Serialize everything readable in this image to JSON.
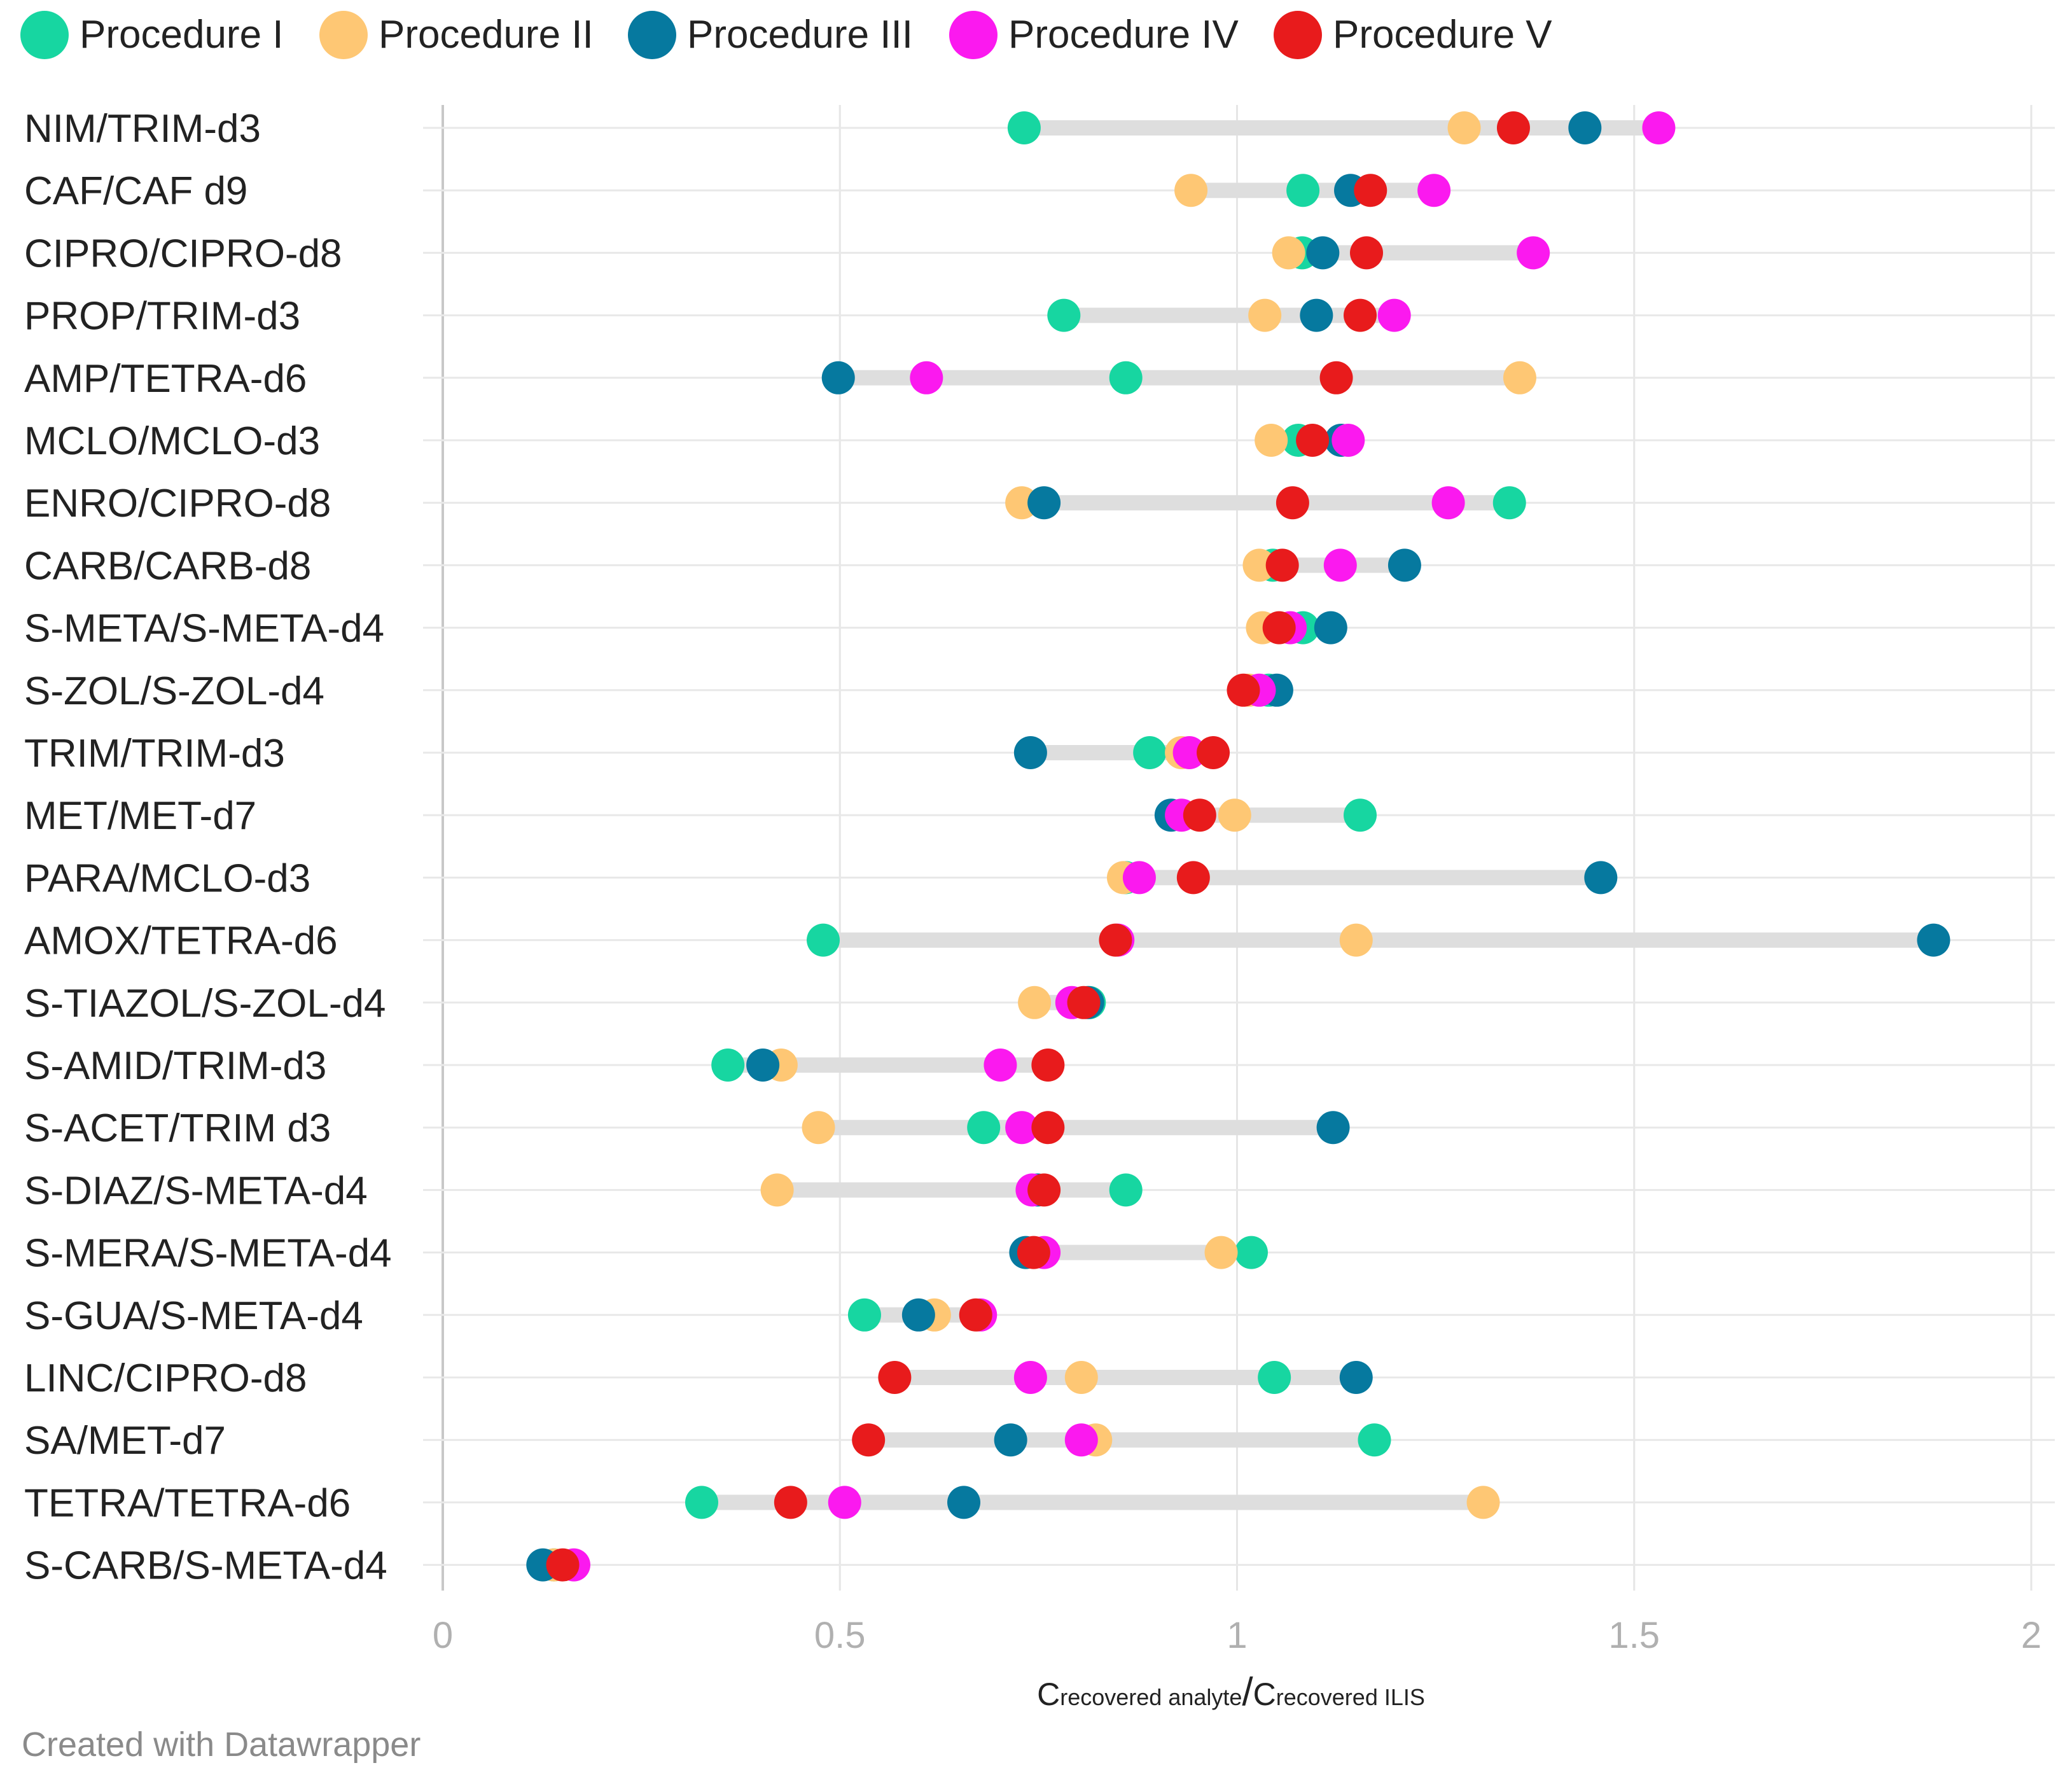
{
  "chart_data": {
    "type": "scatter",
    "subtype": "range-dot-plot",
    "title": "",
    "xlabel_parts": [
      "C",
      "recovered analyte",
      "/",
      "C",
      "recovered ILIS"
    ],
    "xlim": [
      0,
      2
    ],
    "xticks": [
      0,
      0.5,
      1,
      1.5,
      2
    ],
    "xtick_labels": [
      "0",
      "0.5",
      "1",
      "1.5",
      "2"
    ],
    "grid": true,
    "legend_position": "top-left",
    "series": [
      {
        "name": "Procedure I",
        "color": "#17d6a1"
      },
      {
        "name": "Procedure II",
        "color": "#fec774"
      },
      {
        "name": "Procedure III",
        "color": "#06799f"
      },
      {
        "name": "Procedure IV",
        "color": "#fb19ef"
      },
      {
        "name": "Procedure V",
        "color": "#e81b1c"
      }
    ],
    "categories": [
      "NIM/TRIM-d3",
      "CAF/CAF d9",
      "CIPRO/CIPRO-d8",
      "PROP/TRIM-d3",
      "AMP/TETRA-d6",
      "MCLO/MCLO-d3",
      "ENRO/CIPRO-d8",
      "CARB/CARB-d8",
      "S-META/S-META-d4",
      "S-ZOL/S-ZOL-d4",
      "TRIM/TRIM-d3",
      "MET/MET-d7",
      "PARA/MCLO-d3",
      "AMOX/TETRA-d6",
      "S-TIAZOL/S-ZOL-d4",
      "S-AMID/TRIM-d3",
      "S-ACET/TRIM d3",
      "S-DIAZ/S-META-d4",
      "S-MERA/S-META-d4",
      "S-GUA/S-META-d4",
      "LINC/CIPRO-d8",
      "SA/MET-d7",
      "TETRA/TETRA-d6",
      "S-CARB/S-META-d4"
    ],
    "values": [
      [
        0.732,
        1.286,
        1.438,
        1.531,
        1.348
      ],
      [
        1.083,
        0.942,
        1.143,
        1.248,
        1.168
      ],
      [
        1.082,
        1.065,
        1.108,
        1.373,
        1.163
      ],
      [
        0.782,
        1.035,
        1.1,
        1.198,
        1.155
      ],
      [
        0.86,
        1.356,
        0.498,
        0.609,
        1.125
      ],
      [
        1.077,
        1.043,
        1.131,
        1.14,
        1.095
      ],
      [
        1.343,
        0.729,
        0.757,
        1.266,
        1.07
      ],
      [
        1.045,
        1.028,
        1.211,
        1.13,
        1.057
      ],
      [
        1.083,
        1.032,
        1.118,
        1.067,
        1.053
      ],
      [
        1.04,
        1.015,
        1.05,
        1.028,
        1.008
      ],
      [
        0.89,
        0.93,
        0.74,
        0.94,
        0.97
      ],
      [
        1.155,
        0.997,
        0.917,
        0.93,
        0.953
      ],
      [
        0.86,
        0.857,
        1.458,
        0.877,
        0.945
      ],
      [
        0.479,
        1.15,
        1.877,
        0.85,
        0.847
      ],
      [
        0.814,
        0.745,
        0.812,
        0.792,
        0.807
      ],
      [
        0.359,
        0.426,
        0.403,
        0.702,
        0.762
      ],
      [
        0.681,
        0.473,
        1.121,
        0.729,
        0.762
      ],
      [
        0.86,
        0.421,
        0.749,
        0.742,
        0.757
      ],
      [
        1.018,
        0.98,
        0.734,
        0.757,
        0.744
      ],
      [
        0.531,
        0.619,
        0.599,
        0.677,
        0.671
      ],
      [
        1.047,
        0.804,
        1.15,
        0.74,
        0.569
      ],
      [
        1.173,
        0.822,
        0.715,
        0.804,
        0.536
      ],
      [
        0.326,
        1.31,
        0.656,
        0.506,
        0.438
      ],
      [
        0.14,
        0.14,
        0.126,
        0.165,
        0.151
      ]
    ]
  },
  "footer": "Created with Datawrapper"
}
